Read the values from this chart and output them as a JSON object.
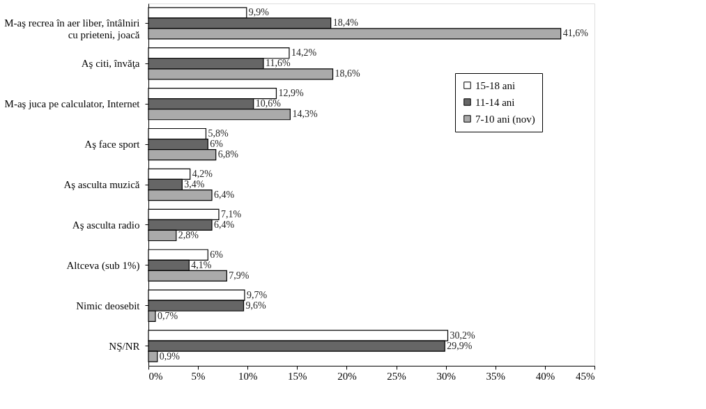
{
  "chart_data": {
    "type": "bar",
    "orientation": "horizontal",
    "categories": [
      "M-aş recrea în aer liber, întâlniri\ncu prieteni, joacă",
      "Aş citi, învăţa",
      "M-aş juca pe calculator, Internet",
      "Aş face sport",
      "Aş asculta muzică",
      "Aş asculta radio",
      "Altceva (sub 1%)",
      "Nimic deosebit",
      "NŞ/NR"
    ],
    "series": [
      {
        "name": "15-18 ani",
        "color": "#ffffff",
        "values": [
          9.9,
          14.2,
          12.9,
          5.8,
          4.2,
          7.1,
          6,
          9.7,
          30.2
        ],
        "value_labels": [
          "9,9%",
          "14,2%",
          "12,9%",
          "5,8%",
          "4,2%",
          "7,1%",
          "6%",
          "9,7%",
          "30,2%"
        ]
      },
      {
        "name": "11-14 ani",
        "color": "#666666",
        "values": [
          18.4,
          11.6,
          10.6,
          6,
          3.4,
          6.4,
          4.1,
          9.6,
          29.9
        ],
        "value_labels": [
          "18,4%",
          "11,6%",
          "10,6%",
          "6%",
          "3,4%",
          "6,4%",
          "4,1%",
          "9,6%",
          "29,9%"
        ]
      },
      {
        "name": "7-10 ani (nov)",
        "color": "#aaaaaa",
        "values": [
          41.6,
          18.6,
          14.3,
          6.8,
          6.4,
          2.8,
          7.9,
          0.7,
          0.9
        ],
        "value_labels": [
          "41,6%",
          "18,6%",
          "14,3%",
          "6,8%",
          "6,4%",
          "2,8%",
          "7,9%",
          "0,7%",
          "0,9%"
        ]
      }
    ],
    "xlim": [
      0,
      45
    ],
    "xticks": [
      {
        "value": 0,
        "label": "0%"
      },
      {
        "value": 5,
        "label": "5%"
      },
      {
        "value": 10,
        "label": "10%"
      },
      {
        "value": 15,
        "label": "15%"
      },
      {
        "value": 20,
        "label": "20%"
      },
      {
        "value": 25,
        "label": "25%"
      },
      {
        "value": 30,
        "label": "30%"
      },
      {
        "value": 35,
        "label": "35%"
      },
      {
        "value": 40,
        "label": "40%"
      },
      {
        "value": 45,
        "label": "45%"
      }
    ],
    "legend": "top right",
    "grid": false
  }
}
